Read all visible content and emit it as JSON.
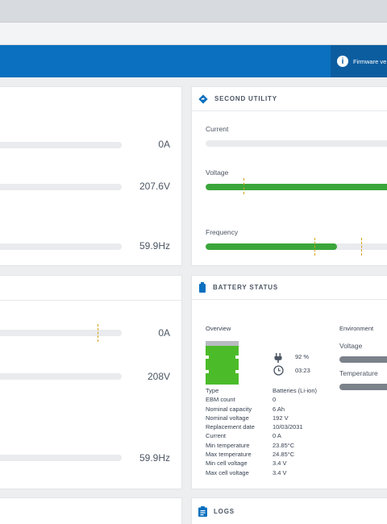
{
  "header": {
    "firmware_label": "Firmware ve"
  },
  "second_utility": {
    "title": "SECOND UTILITY",
    "rows": [
      {
        "label": "Current",
        "level": 0.0
      },
      {
        "label": "Voltage",
        "level": 1.0
      },
      {
        "label": "Frequency",
        "level": 0.7
      }
    ]
  },
  "left_top": {
    "values": [
      "0A",
      "207.6V",
      "59.9Hz"
    ]
  },
  "left_mid": {
    "values": [
      "0A",
      "208V",
      "59.9Hz"
    ]
  },
  "battery": {
    "title": "BATTERY STATUS",
    "overview_label": "Overview",
    "environment_label": "Environment",
    "charge": "92 %",
    "runtime": "03:23",
    "env": [
      {
        "label": "Voltage"
      },
      {
        "label": "Temperature"
      }
    ],
    "details": [
      {
        "k": "Type",
        "v": "Batteries (Li-ion)"
      },
      {
        "k": "EBM count",
        "v": "0"
      },
      {
        "k": "Nominal capacity",
        "v": "6 Ah"
      },
      {
        "k": "Nominal voltage",
        "v": "192 V"
      },
      {
        "k": "Replacement date",
        "v": "10/03/2031"
      },
      {
        "k": "Current",
        "v": "0 A"
      },
      {
        "k": "Min temperature",
        "v": "23.85°C"
      },
      {
        "k": "Max temperature",
        "v": "24.85°C"
      },
      {
        "k": "Min cell voltage",
        "v": "3.4 V"
      },
      {
        "k": "Max cell voltage",
        "v": "3.4 V"
      }
    ]
  },
  "logs": {
    "title": "LOGS"
  },
  "colors": {
    "brand_blue": "#0a70bf",
    "good_green": "#3aa63a",
    "muted_track": "#e9ebee"
  }
}
